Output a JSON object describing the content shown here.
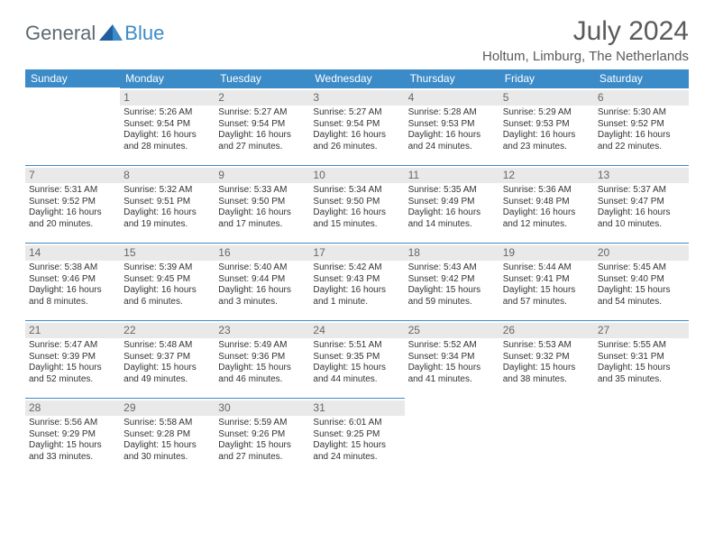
{
  "brand": {
    "part1": "General",
    "part2": "Blue"
  },
  "title": "July 2024",
  "location": "Holtum, Limburg, The Netherlands",
  "colors": {
    "header_bg": "#3b8bc9",
    "daynum_bg": "#e9e9e9",
    "text": "#333333",
    "title_color": "#5a5a5a"
  },
  "weekdays": [
    "Sunday",
    "Monday",
    "Tuesday",
    "Wednesday",
    "Thursday",
    "Friday",
    "Saturday"
  ],
  "weeks": [
    [
      {
        "n": "",
        "sr": "",
        "ss": "",
        "dl": ""
      },
      {
        "n": "1",
        "sr": "5:26 AM",
        "ss": "9:54 PM",
        "dl": "16 hours and 28 minutes."
      },
      {
        "n": "2",
        "sr": "5:27 AM",
        "ss": "9:54 PM",
        "dl": "16 hours and 27 minutes."
      },
      {
        "n": "3",
        "sr": "5:27 AM",
        "ss": "9:54 PM",
        "dl": "16 hours and 26 minutes."
      },
      {
        "n": "4",
        "sr": "5:28 AM",
        "ss": "9:53 PM",
        "dl": "16 hours and 24 minutes."
      },
      {
        "n": "5",
        "sr": "5:29 AM",
        "ss": "9:53 PM",
        "dl": "16 hours and 23 minutes."
      },
      {
        "n": "6",
        "sr": "5:30 AM",
        "ss": "9:52 PM",
        "dl": "16 hours and 22 minutes."
      }
    ],
    [
      {
        "n": "7",
        "sr": "5:31 AM",
        "ss": "9:52 PM",
        "dl": "16 hours and 20 minutes."
      },
      {
        "n": "8",
        "sr": "5:32 AM",
        "ss": "9:51 PM",
        "dl": "16 hours and 19 minutes."
      },
      {
        "n": "9",
        "sr": "5:33 AM",
        "ss": "9:50 PM",
        "dl": "16 hours and 17 minutes."
      },
      {
        "n": "10",
        "sr": "5:34 AM",
        "ss": "9:50 PM",
        "dl": "16 hours and 15 minutes."
      },
      {
        "n": "11",
        "sr": "5:35 AM",
        "ss": "9:49 PM",
        "dl": "16 hours and 14 minutes."
      },
      {
        "n": "12",
        "sr": "5:36 AM",
        "ss": "9:48 PM",
        "dl": "16 hours and 12 minutes."
      },
      {
        "n": "13",
        "sr": "5:37 AM",
        "ss": "9:47 PM",
        "dl": "16 hours and 10 minutes."
      }
    ],
    [
      {
        "n": "14",
        "sr": "5:38 AM",
        "ss": "9:46 PM",
        "dl": "16 hours and 8 minutes."
      },
      {
        "n": "15",
        "sr": "5:39 AM",
        "ss": "9:45 PM",
        "dl": "16 hours and 6 minutes."
      },
      {
        "n": "16",
        "sr": "5:40 AM",
        "ss": "9:44 PM",
        "dl": "16 hours and 3 minutes."
      },
      {
        "n": "17",
        "sr": "5:42 AM",
        "ss": "9:43 PM",
        "dl": "16 hours and 1 minute."
      },
      {
        "n": "18",
        "sr": "5:43 AM",
        "ss": "9:42 PM",
        "dl": "15 hours and 59 minutes."
      },
      {
        "n": "19",
        "sr": "5:44 AM",
        "ss": "9:41 PM",
        "dl": "15 hours and 57 minutes."
      },
      {
        "n": "20",
        "sr": "5:45 AM",
        "ss": "9:40 PM",
        "dl": "15 hours and 54 minutes."
      }
    ],
    [
      {
        "n": "21",
        "sr": "5:47 AM",
        "ss": "9:39 PM",
        "dl": "15 hours and 52 minutes."
      },
      {
        "n": "22",
        "sr": "5:48 AM",
        "ss": "9:37 PM",
        "dl": "15 hours and 49 minutes."
      },
      {
        "n": "23",
        "sr": "5:49 AM",
        "ss": "9:36 PM",
        "dl": "15 hours and 46 minutes."
      },
      {
        "n": "24",
        "sr": "5:51 AM",
        "ss": "9:35 PM",
        "dl": "15 hours and 44 minutes."
      },
      {
        "n": "25",
        "sr": "5:52 AM",
        "ss": "9:34 PM",
        "dl": "15 hours and 41 minutes."
      },
      {
        "n": "26",
        "sr": "5:53 AM",
        "ss": "9:32 PM",
        "dl": "15 hours and 38 minutes."
      },
      {
        "n": "27",
        "sr": "5:55 AM",
        "ss": "9:31 PM",
        "dl": "15 hours and 35 minutes."
      }
    ],
    [
      {
        "n": "28",
        "sr": "5:56 AM",
        "ss": "9:29 PM",
        "dl": "15 hours and 33 minutes."
      },
      {
        "n": "29",
        "sr": "5:58 AM",
        "ss": "9:28 PM",
        "dl": "15 hours and 30 minutes."
      },
      {
        "n": "30",
        "sr": "5:59 AM",
        "ss": "9:26 PM",
        "dl": "15 hours and 27 minutes."
      },
      {
        "n": "31",
        "sr": "6:01 AM",
        "ss": "9:25 PM",
        "dl": "15 hours and 24 minutes."
      },
      {
        "n": "",
        "sr": "",
        "ss": "",
        "dl": ""
      },
      {
        "n": "",
        "sr": "",
        "ss": "",
        "dl": ""
      },
      {
        "n": "",
        "sr": "",
        "ss": "",
        "dl": ""
      }
    ]
  ]
}
